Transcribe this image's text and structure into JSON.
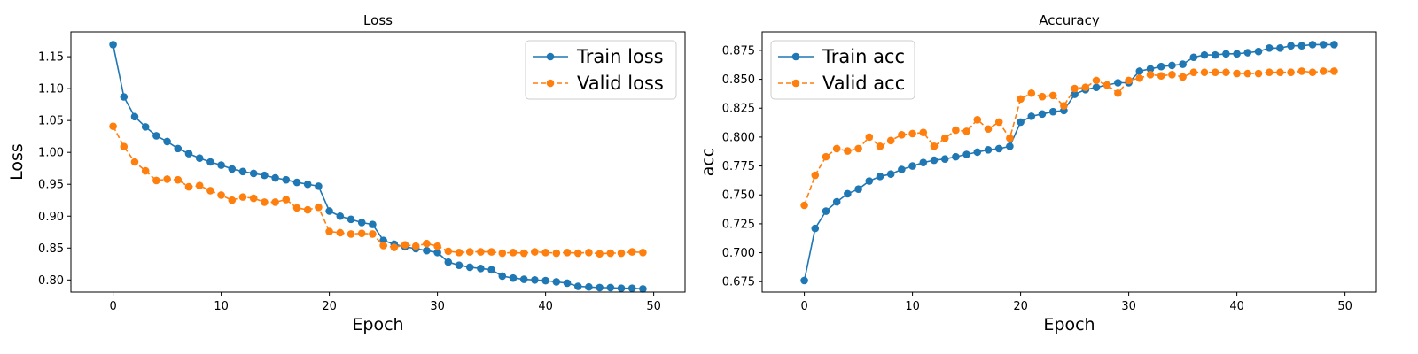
{
  "figure": {
    "charts": [
      {
        "id": "loss",
        "type": "line",
        "title": "Loss",
        "xlabel": "Epoch",
        "ylabel": "Loss",
        "xlim": [
          -3.9,
          52.9
        ],
        "ylim": [
          0.781,
          1.189
        ],
        "xticks": [
          0,
          10,
          20,
          30,
          40,
          50
        ],
        "yticks": [
          0.8,
          0.85,
          0.9,
          0.95,
          1.0,
          1.05,
          1.1,
          1.15
        ],
        "ytick_labels": [
          "0.80",
          "0.85",
          "0.90",
          "0.95",
          "1.00",
          "1.05",
          "1.10",
          "1.15"
        ],
        "grid": false,
        "legend_position": "top-right",
        "x": [
          0,
          1,
          2,
          3,
          4,
          5,
          6,
          7,
          8,
          9,
          10,
          11,
          12,
          13,
          14,
          15,
          16,
          17,
          18,
          19,
          20,
          21,
          22,
          23,
          24,
          25,
          26,
          27,
          28,
          29,
          30,
          31,
          32,
          33,
          34,
          35,
          36,
          37,
          38,
          39,
          40,
          41,
          42,
          43,
          44,
          45,
          46,
          47,
          48,
          49
        ],
        "series": [
          {
            "name": "Train loss",
            "color": "#1f77b4",
            "linestyle": "solid",
            "marker": "circle",
            "values": [
              1.169,
              1.087,
              1.056,
              1.04,
              1.026,
              1.017,
              1.006,
              0.998,
              0.991,
              0.985,
              0.98,
              0.974,
              0.97,
              0.967,
              0.964,
              0.96,
              0.957,
              0.953,
              0.95,
              0.947,
              0.908,
              0.9,
              0.895,
              0.89,
              0.887,
              0.862,
              0.856,
              0.852,
              0.849,
              0.846,
              0.843,
              0.828,
              0.823,
              0.82,
              0.818,
              0.816,
              0.806,
              0.803,
              0.801,
              0.8,
              0.799,
              0.797,
              0.795,
              0.79,
              0.789,
              0.788,
              0.788,
              0.787,
              0.787,
              0.786
            ]
          },
          {
            "name": "Valid loss",
            "color": "#ff7f0e",
            "linestyle": "dashed",
            "marker": "circle",
            "values": [
              1.041,
              1.009,
              0.985,
              0.971,
              0.956,
              0.958,
              0.957,
              0.946,
              0.948,
              0.94,
              0.933,
              0.925,
              0.93,
              0.928,
              0.922,
              0.922,
              0.926,
              0.913,
              0.91,
              0.914,
              0.876,
              0.874,
              0.872,
              0.873,
              0.872,
              0.854,
              0.851,
              0.855,
              0.853,
              0.857,
              0.853,
              0.845,
              0.843,
              0.844,
              0.844,
              0.844,
              0.842,
              0.843,
              0.842,
              0.844,
              0.843,
              0.842,
              0.843,
              0.842,
              0.843,
              0.841,
              0.842,
              0.842,
              0.844,
              0.843
            ]
          }
        ]
      },
      {
        "id": "accuracy",
        "type": "line",
        "title": "Accuracy",
        "xlabel": "Epoch",
        "ylabel": "acc",
        "xlim": [
          -3.9,
          52.9
        ],
        "ylim": [
          0.666,
          0.891
        ],
        "xticks": [
          0,
          10,
          20,
          30,
          40,
          50
        ],
        "yticks": [
          0.675,
          0.7,
          0.725,
          0.75,
          0.775,
          0.8,
          0.825,
          0.85,
          0.875
        ],
        "ytick_labels": [
          "0.675",
          "0.700",
          "0.725",
          "0.750",
          "0.775",
          "0.800",
          "0.825",
          "0.850",
          "0.875"
        ],
        "grid": false,
        "legend_position": "top-left",
        "x": [
          0,
          1,
          2,
          3,
          4,
          5,
          6,
          7,
          8,
          9,
          10,
          11,
          12,
          13,
          14,
          15,
          16,
          17,
          18,
          19,
          20,
          21,
          22,
          23,
          24,
          25,
          26,
          27,
          28,
          29,
          30,
          31,
          32,
          33,
          34,
          35,
          36,
          37,
          38,
          39,
          40,
          41,
          42,
          43,
          44,
          45,
          46,
          47,
          48,
          49
        ],
        "series": [
          {
            "name": "Train acc",
            "color": "#1f77b4",
            "linestyle": "solid",
            "marker": "circle",
            "values": [
              0.676,
              0.721,
              0.736,
              0.744,
              0.751,
              0.755,
              0.762,
              0.766,
              0.768,
              0.772,
              0.775,
              0.778,
              0.78,
              0.781,
              0.783,
              0.785,
              0.787,
              0.789,
              0.79,
              0.792,
              0.813,
              0.818,
              0.82,
              0.822,
              0.823,
              0.837,
              0.841,
              0.843,
              0.845,
              0.847,
              0.847,
              0.857,
              0.859,
              0.861,
              0.862,
              0.863,
              0.869,
              0.871,
              0.871,
              0.872,
              0.872,
              0.873,
              0.874,
              0.877,
              0.877,
              0.879,
              0.879,
              0.88,
              0.88,
              0.88
            ]
          },
          {
            "name": "Valid acc",
            "color": "#ff7f0e",
            "linestyle": "dashed",
            "marker": "circle",
            "values": [
              0.741,
              0.767,
              0.783,
              0.79,
              0.788,
              0.79,
              0.8,
              0.792,
              0.797,
              0.802,
              0.803,
              0.804,
              0.792,
              0.799,
              0.806,
              0.805,
              0.815,
              0.807,
              0.813,
              0.799,
              0.833,
              0.838,
              0.835,
              0.836,
              0.827,
              0.842,
              0.843,
              0.849,
              0.845,
              0.838,
              0.849,
              0.851,
              0.854,
              0.853,
              0.854,
              0.852,
              0.856,
              0.856,
              0.856,
              0.856,
              0.855,
              0.855,
              0.855,
              0.856,
              0.856,
              0.856,
              0.857,
              0.856,
              0.857,
              0.857
            ]
          }
        ]
      }
    ]
  }
}
